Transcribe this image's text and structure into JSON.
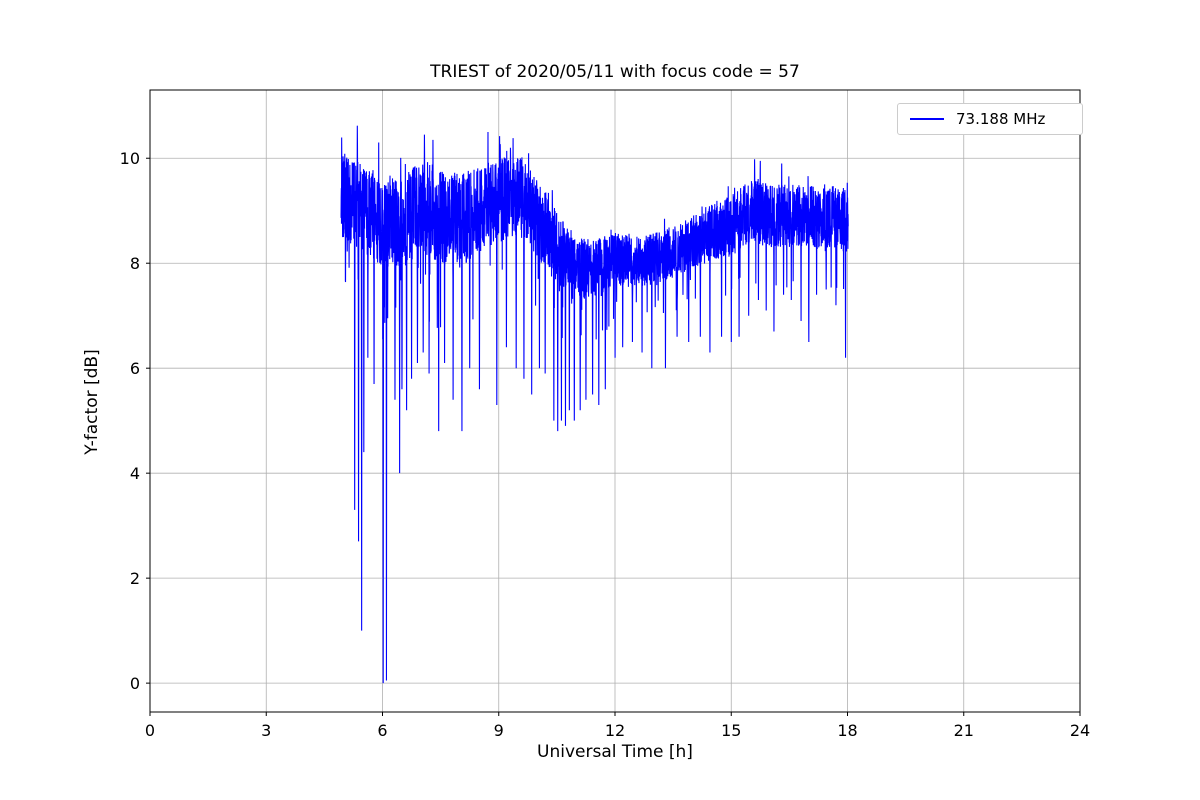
{
  "chart_data": {
    "type": "line",
    "title": "TRIEST of 2020/05/11 with focus code = 57",
    "xlabel": "Universal Time [h]",
    "ylabel": "Y-factor [dB]",
    "xlim": [
      0,
      24
    ],
    "ylim": [
      -0.55,
      11.3
    ],
    "x_ticks": [
      0,
      3,
      6,
      9,
      12,
      15,
      18,
      21,
      24
    ],
    "y_ticks": [
      0,
      2,
      4,
      6,
      8,
      10
    ],
    "grid": true,
    "grid_color": "#b0b0b0",
    "legend_position": "upper right",
    "series": [
      {
        "name": "73.188 MHz",
        "color": "#0000ff",
        "x_start": 4.93,
        "x_end": 18.02,
        "noise_seed": 20200511,
        "baseline": [
          [
            4.93,
            9.3
          ],
          [
            5.0,
            9.3
          ],
          [
            5.5,
            9.0
          ],
          [
            6.0,
            8.8
          ],
          [
            6.5,
            8.8
          ],
          [
            7.0,
            9.1
          ],
          [
            7.5,
            8.9
          ],
          [
            8.0,
            8.8
          ],
          [
            8.5,
            9.0
          ],
          [
            9.0,
            9.2
          ],
          [
            9.5,
            9.3
          ],
          [
            10.0,
            8.9
          ],
          [
            10.5,
            8.3
          ],
          [
            11.0,
            7.9
          ],
          [
            11.5,
            7.9
          ],
          [
            12.0,
            8.1
          ],
          [
            12.5,
            8.0
          ],
          [
            13.0,
            8.1
          ],
          [
            13.5,
            8.2
          ],
          [
            14.0,
            8.4
          ],
          [
            14.5,
            8.6
          ],
          [
            15.0,
            8.7
          ],
          [
            15.5,
            9.0
          ],
          [
            16.0,
            8.9
          ],
          [
            16.5,
            8.9
          ],
          [
            17.0,
            8.9
          ],
          [
            17.5,
            8.9
          ],
          [
            18.02,
            8.8
          ]
        ],
        "band_halfwidth": [
          [
            4.93,
            0.8
          ],
          [
            6.0,
            0.9
          ],
          [
            7.0,
            0.9
          ],
          [
            8.0,
            0.9
          ],
          [
            9.0,
            0.8
          ],
          [
            10.0,
            0.8
          ],
          [
            10.5,
            0.7
          ],
          [
            11.0,
            0.6
          ],
          [
            12.0,
            0.5
          ],
          [
            13.0,
            0.5
          ],
          [
            14.0,
            0.5
          ],
          [
            15.0,
            0.6
          ],
          [
            16.0,
            0.6
          ],
          [
            17.0,
            0.6
          ],
          [
            18.02,
            0.6
          ]
        ],
        "spikes": [
          [
            5.28,
            3.3
          ],
          [
            5.38,
            2.7
          ],
          [
            5.46,
            1.0
          ],
          [
            5.52,
            4.4
          ],
          [
            5.62,
            6.2
          ],
          [
            5.78,
            5.7
          ],
          [
            5.9,
            6.4
          ],
          [
            6.02,
            0.0
          ],
          [
            6.1,
            0.05
          ],
          [
            6.32,
            5.4
          ],
          [
            6.44,
            4.0
          ],
          [
            6.5,
            5.6
          ],
          [
            6.62,
            5.2
          ],
          [
            6.75,
            5.8
          ],
          [
            6.9,
            6.1
          ],
          [
            7.05,
            6.3
          ],
          [
            7.2,
            5.9
          ],
          [
            7.45,
            4.8
          ],
          [
            7.6,
            6.1
          ],
          [
            7.82,
            5.4
          ],
          [
            8.05,
            4.8
          ],
          [
            8.25,
            6.0
          ],
          [
            8.5,
            5.6
          ],
          [
            8.72,
            6.2
          ],
          [
            8.95,
            5.3
          ],
          [
            9.2,
            6.4
          ],
          [
            9.45,
            6.0
          ],
          [
            9.65,
            5.8
          ],
          [
            9.85,
            5.5
          ],
          [
            10.05,
            6.0
          ],
          [
            10.2,
            5.9
          ],
          [
            10.42,
            5.0
          ],
          [
            10.52,
            4.8
          ],
          [
            10.62,
            5.0
          ],
          [
            10.72,
            4.9
          ],
          [
            10.82,
            5.2
          ],
          [
            10.95,
            5.0
          ],
          [
            11.1,
            5.2
          ],
          [
            11.25,
            5.4
          ],
          [
            11.42,
            5.5
          ],
          [
            11.58,
            5.3
          ],
          [
            11.75,
            5.6
          ],
          [
            12.0,
            6.2
          ],
          [
            12.2,
            6.4
          ],
          [
            12.45,
            6.5
          ],
          [
            12.7,
            6.3
          ],
          [
            12.95,
            6.0
          ],
          [
            13.3,
            6.0
          ],
          [
            13.6,
            6.6
          ],
          [
            13.9,
            6.5
          ],
          [
            14.2,
            6.6
          ],
          [
            14.45,
            6.3
          ],
          [
            14.75,
            6.6
          ],
          [
            15.0,
            6.5
          ],
          [
            15.2,
            6.6
          ],
          [
            15.45,
            7.0
          ],
          [
            15.7,
            7.3
          ],
          [
            15.9,
            7.1
          ],
          [
            16.1,
            6.7
          ],
          [
            16.35,
            7.4
          ],
          [
            16.55,
            7.3
          ],
          [
            16.8,
            6.9
          ],
          [
            17.0,
            6.5
          ],
          [
            17.2,
            7.4
          ],
          [
            17.45,
            7.5
          ],
          [
            17.7,
            7.2
          ],
          [
            17.95,
            6.2
          ]
        ],
        "peaks": [
          [
            5.35,
            10.62
          ],
          [
            5.9,
            10.3
          ],
          [
            7.08,
            10.45
          ],
          [
            7.3,
            10.35
          ],
          [
            8.72,
            10.5
          ],
          [
            9.02,
            10.42
          ],
          [
            9.3,
            10.2
          ],
          [
            15.6,
            9.98
          ],
          [
            15.75,
            9.95
          ],
          [
            16.3,
            9.9
          ]
        ]
      }
    ]
  }
}
